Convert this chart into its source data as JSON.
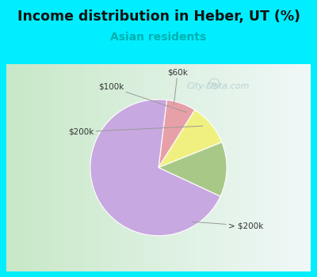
{
  "title": "Income distribution in Heber, UT (%)",
  "subtitle": "Asian residents",
  "title_color": "#111111",
  "subtitle_color": "#00b0b0",
  "header_bg": "#00eeff",
  "chart_bg_left": "#c8e8c8",
  "chart_bg_right": "#e8f4f4",
  "slices": [
    {
      "label": "$60k",
      "value": 7,
      "color": "#e8a0a8"
    },
    {
      "label": "$100k",
      "value": 10,
      "color": "#f0f080"
    },
    {
      "label": "$200k",
      "value": 13,
      "color": "#a8c888"
    },
    {
      "label": "> $200k",
      "value": 70,
      "color": "#c8a8e0"
    }
  ],
  "label_color": "#333333",
  "line_color": "#999999",
  "watermark_text": "City-Data.com",
  "watermark_color": "#b0ccd0",
  "figsize": [
    4.0,
    3.5
  ],
  "dpi": 100,
  "title_fontsize": 12.5,
  "subtitle_fontsize": 10,
  "label_fontsize": 7.5
}
